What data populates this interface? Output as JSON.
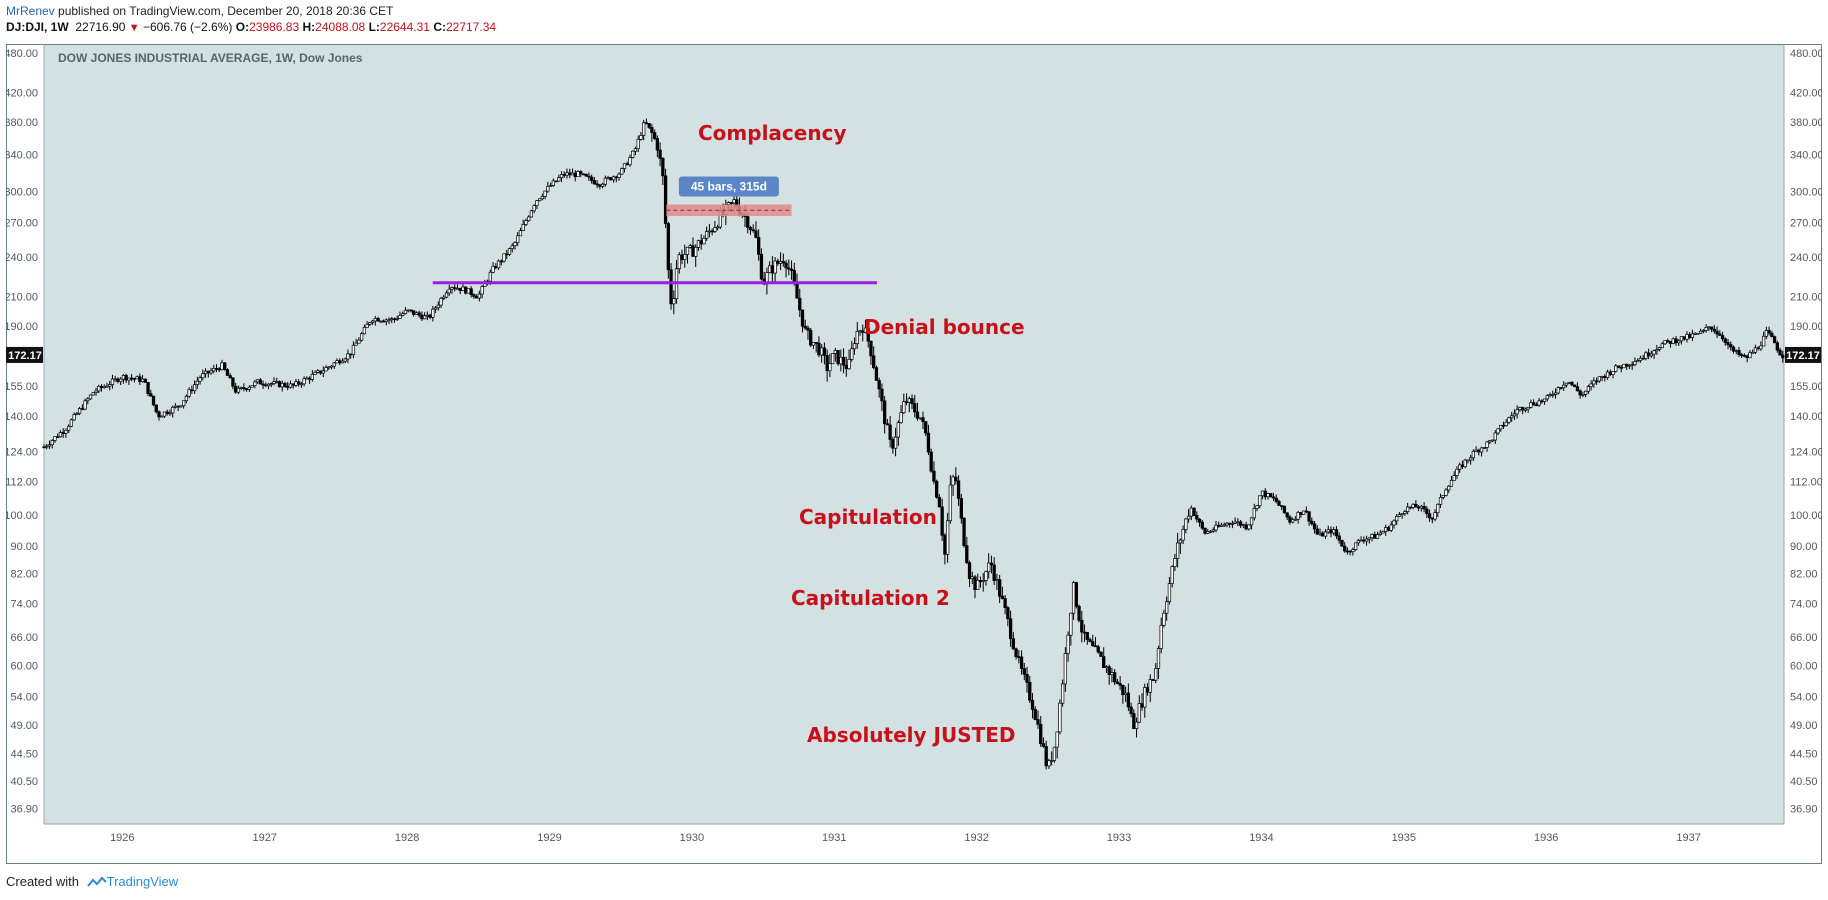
{
  "header": {
    "author": "MrRenev",
    "published": " published on TradingView.com, December 20, 2018 20:36 CET"
  },
  "ohlc": {
    "symbol": "DJ:DJI, 1W",
    "last": "22716.90",
    "change": "−606.76 (−2.6%)",
    "open_label": "O:",
    "open": "23986.83",
    "high_label": "H:",
    "high": "24088.08",
    "low_label": "L:",
    "low": "22644.31",
    "close_label": "C:",
    "close": "22717.34"
  },
  "footer": {
    "created": "Created with",
    "brand": "TradingView"
  },
  "colors": {
    "background": "#d3e1e3",
    "candle": "#000000",
    "support_line": "#9b1fe0",
    "annotation": "#c8101a",
    "measure_box": "#e38a8a",
    "measure_label_bg": "#5a86c8"
  },
  "annotations": [
    {
      "text": "Complacency"
    },
    {
      "text": "Denial bounce"
    },
    {
      "text": "Capitulation"
    },
    {
      "text": "Capitulation 2"
    },
    {
      "text": "Absolutely JUSTED"
    }
  ],
  "chart_data": {
    "type": "candlestick",
    "title": "DOW JONES INDUSTRIAL AVERAGE, 1W, Dow Jones",
    "y_scale": "log",
    "ylim": [
      35,
      495
    ],
    "y_ticks": [
      "480.00",
      "420.00",
      "380.00",
      "340.00",
      "300.00",
      "270.00",
      "240.00",
      "210.00",
      "190.00",
      "155.00",
      "140.00",
      "124.00",
      "112.00",
      "100.00",
      "90.00",
      "82.00",
      "74.00",
      "66.00",
      "60.00",
      "54.00",
      "49.00",
      "44.50",
      "40.50",
      "36.90"
    ],
    "y_tick_values": [
      480,
      420,
      380,
      340,
      300,
      270,
      240,
      210,
      190,
      155,
      140,
      124,
      112,
      100,
      90,
      82,
      74,
      66,
      60,
      54,
      49,
      44.5,
      40.5,
      36.9
    ],
    "x_ticks": [
      "1926",
      "1927",
      "1928",
      "1929",
      "1930",
      "1931",
      "1932",
      "1933",
      "1934",
      "1935",
      "1936",
      "1937"
    ],
    "x_tick_values": [
      1926,
      1927,
      1928,
      1929,
      1930,
      1931,
      1932,
      1933,
      1934,
      1935,
      1936,
      1937
    ],
    "xlim": [
      1925.45,
      1937.67
    ],
    "last_price_label": "172.17",
    "last_price": 172.17,
    "anchors": [
      [
        1925.45,
        126
      ],
      [
        1925.6,
        134
      ],
      [
        1925.8,
        152
      ],
      [
        1926.0,
        160
      ],
      [
        1926.15,
        158
      ],
      [
        1926.25,
        140
      ],
      [
        1926.4,
        145
      ],
      [
        1926.55,
        160
      ],
      [
        1926.7,
        166
      ],
      [
        1926.8,
        152
      ],
      [
        1926.95,
        157
      ],
      [
        1927.2,
        155
      ],
      [
        1927.4,
        163
      ],
      [
        1927.6,
        173
      ],
      [
        1927.75,
        195
      ],
      [
        1927.9,
        194
      ],
      [
        1928.0,
        200
      ],
      [
        1928.15,
        195
      ],
      [
        1928.3,
        218
      ],
      [
        1928.4,
        215
      ],
      [
        1928.5,
        210
      ],
      [
        1928.6,
        230
      ],
      [
        1928.75,
        250
      ],
      [
        1928.9,
        290
      ],
      [
        1929.0,
        305
      ],
      [
        1929.1,
        318
      ],
      [
        1929.2,
        318
      ],
      [
        1929.35,
        308
      ],
      [
        1929.5,
        320
      ],
      [
        1929.6,
        345
      ],
      [
        1929.67,
        380
      ],
      [
        1929.72,
        365
      ],
      [
        1929.76,
        350
      ],
      [
        1929.8,
        310
      ],
      [
        1929.83,
        235
      ],
      [
        1929.86,
        200
      ],
      [
        1929.9,
        240
      ],
      [
        1930.0,
        245
      ],
      [
        1930.1,
        258
      ],
      [
        1930.2,
        275
      ],
      [
        1930.3,
        290
      ],
      [
        1930.35,
        280
      ],
      [
        1930.4,
        270
      ],
      [
        1930.45,
        255
      ],
      [
        1930.5,
        220
      ],
      [
        1930.55,
        230
      ],
      [
        1930.6,
        235
      ],
      [
        1930.65,
        240
      ],
      [
        1930.7,
        225
      ],
      [
        1930.8,
        185
      ],
      [
        1930.9,
        175
      ],
      [
        1930.95,
        165
      ],
      [
        1931.0,
        172
      ],
      [
        1931.1,
        165
      ],
      [
        1931.15,
        185
      ],
      [
        1931.2,
        190
      ],
      [
        1931.25,
        178
      ],
      [
        1931.35,
        140
      ],
      [
        1931.4,
        125
      ],
      [
        1931.5,
        148
      ],
      [
        1931.6,
        140
      ],
      [
        1931.65,
        130
      ],
      [
        1931.7,
        112
      ],
      [
        1931.75,
        102
      ],
      [
        1931.77,
        84
      ],
      [
        1931.82,
        112
      ],
      [
        1931.85,
        114
      ],
      [
        1931.9,
        95
      ],
      [
        1931.95,
        82
      ],
      [
        1932.0,
        78
      ],
      [
        1932.1,
        85
      ],
      [
        1932.2,
        72
      ],
      [
        1932.3,
        60
      ],
      [
        1932.4,
        52
      ],
      [
        1932.45,
        47
      ],
      [
        1932.5,
        42
      ],
      [
        1932.55,
        46
      ],
      [
        1932.6,
        56
      ],
      [
        1932.65,
        70
      ],
      [
        1932.68,
        78
      ],
      [
        1932.75,
        66
      ],
      [
        1932.85,
        62
      ],
      [
        1932.95,
        58
      ],
      [
        1933.05,
        54
      ],
      [
        1933.1,
        49
      ],
      [
        1933.2,
        56
      ],
      [
        1933.25,
        58
      ],
      [
        1933.3,
        70
      ],
      [
        1933.4,
        88
      ],
      [
        1933.5,
        103
      ],
      [
        1933.6,
        94
      ],
      [
        1933.7,
        96
      ],
      [
        1933.8,
        98
      ],
      [
        1933.9,
        96
      ],
      [
        1934.0,
        108
      ],
      [
        1934.1,
        105
      ],
      [
        1934.2,
        98
      ],
      [
        1934.3,
        102
      ],
      [
        1934.4,
        93
      ],
      [
        1934.5,
        95
      ],
      [
        1934.6,
        88
      ],
      [
        1934.7,
        92
      ],
      [
        1934.8,
        93
      ],
      [
        1934.9,
        96
      ],
      [
        1935.0,
        102
      ],
      [
        1935.1,
        103
      ],
      [
        1935.2,
        99
      ],
      [
        1935.3,
        110
      ],
      [
        1935.4,
        118
      ],
      [
        1935.5,
        124
      ],
      [
        1935.6,
        128
      ],
      [
        1935.7,
        136
      ],
      [
        1935.8,
        143
      ],
      [
        1935.9,
        146
      ],
      [
        1936.0,
        148
      ],
      [
        1936.1,
        155
      ],
      [
        1936.15,
        158
      ],
      [
        1936.25,
        150
      ],
      [
        1936.35,
        158
      ],
      [
        1936.5,
        165
      ],
      [
        1936.6,
        168
      ],
      [
        1936.7,
        172
      ],
      [
        1936.8,
        178
      ],
      [
        1936.9,
        181
      ],
      [
        1937.0,
        183
      ],
      [
        1937.1,
        186
      ],
      [
        1937.15,
        190
      ],
      [
        1937.25,
        182
      ],
      [
        1937.3,
        175
      ],
      [
        1937.4,
        170
      ],
      [
        1937.5,
        178
      ],
      [
        1937.55,
        186
      ],
      [
        1937.6,
        180
      ],
      [
        1937.65,
        172
      ]
    ],
    "horizontal_line": {
      "value": 220,
      "x_start": 1928.18,
      "x_end": 1931.3
    },
    "measure": {
      "label": "45 bars, 315d",
      "x_start": 1929.82,
      "x_end": 1930.7,
      "y_low": 276,
      "y_high": 287
    }
  }
}
